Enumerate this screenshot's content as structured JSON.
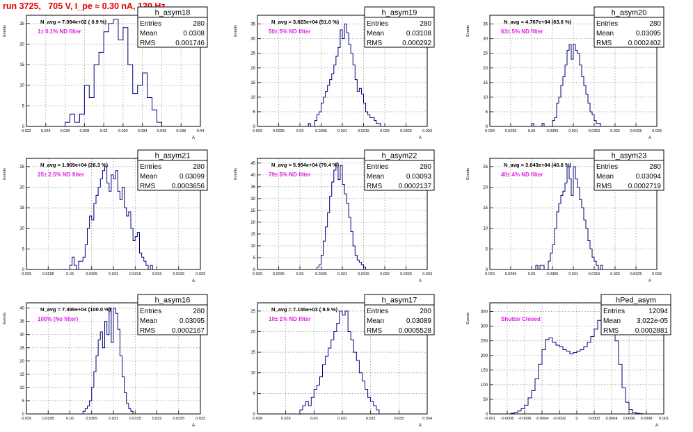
{
  "page_title": "run 3725,   705 V, I_pe ≈ 0.30 nA, 120 Hz",
  "chart_data": [
    {
      "type": "histogram",
      "name": "h_asym18",
      "xlim": [
        0.022,
        0.04
      ],
      "ylim": [
        0,
        27
      ],
      "yticks": [
        0,
        5,
        10,
        15,
        20,
        25
      ],
      "xticks": [
        "0.022",
        "0.024",
        "0.026",
        "0.028",
        "0.03",
        "0.032",
        "0.034",
        "0.036",
        "0.038",
        "0.04"
      ],
      "ylabel": "Events",
      "xlabel": "A",
      "nav": "N_avg = 7.094e+02 ( 0.9 %)",
      "filter": "1± 0.1% ND filter",
      "stats": {
        "Entries": "280",
        "Mean": "0.0308",
        "RMS": "0.001746"
      },
      "bins_x": [
        0.026,
        0.0265,
        0.027,
        0.0275,
        0.028,
        0.0285,
        0.029,
        0.0295,
        0.03,
        0.0305,
        0.031,
        0.0315,
        0.032,
        0.0325,
        0.033,
        0.0335,
        0.034,
        0.0345,
        0.035,
        0.0355
      ],
      "bins_y": [
        1,
        3,
        1,
        3,
        10,
        7,
        15,
        18,
        23,
        25,
        26,
        21,
        24,
        15,
        8,
        10,
        13,
        7,
        4,
        1
      ]
    },
    {
      "type": "histogram",
      "name": "h_asym19",
      "xlim": [
        0.029,
        0.033
      ],
      "ylim": [
        0,
        38
      ],
      "yticks": [
        0,
        5,
        10,
        15,
        20,
        25,
        30,
        35
      ],
      "xticks": [
        "0.029",
        "0.0295",
        "0.03",
        "0.0305",
        "0.031",
        "0.0315",
        "0.032",
        "0.0325",
        "0.033"
      ],
      "ylabel": "Events",
      "xlabel": "A",
      "nav": "N_avg = 3.823e+04 (51.0 %)",
      "filter": "50± 5% ND filter",
      "stats": {
        "Entries": "280",
        "Mean": "0.03108",
        "RMS": "0.000292"
      },
      "bins_x": [
        0.0302,
        0.03025,
        0.0303,
        0.03035,
        0.0304,
        0.03045,
        0.0305,
        0.03055,
        0.0306,
        0.03065,
        0.0307,
        0.03075,
        0.0308,
        0.03085,
        0.0309,
        0.03095,
        0.031,
        0.03105,
        0.0311,
        0.03115,
        0.0312,
        0.03125,
        0.0313,
        0.03135,
        0.0314,
        0.03145,
        0.0315,
        0.03155,
        0.0316,
        0.03165,
        0.0317,
        0.03175,
        0.0318,
        0.03185
      ],
      "bins_y": [
        1,
        0,
        0,
        2,
        4,
        5,
        8,
        10,
        12,
        14,
        16,
        18,
        21,
        24,
        27,
        33,
        30,
        35,
        32,
        28,
        25,
        21,
        16,
        12,
        13,
        11,
        8,
        5,
        4,
        3,
        3,
        2,
        1,
        1
      ]
    },
    {
      "type": "histogram",
      "name": "h_asym20",
      "xlim": [
        0.029,
        0.033
      ],
      "ylim": [
        0,
        38
      ],
      "yticks": [
        0,
        5,
        10,
        15,
        20,
        25,
        30,
        35
      ],
      "xticks": [
        "0.029",
        "0.0295",
        "0.03",
        "0.0305",
        "0.031",
        "0.0315",
        "0.032",
        "0.0325",
        "0.033"
      ],
      "ylabel": "Events",
      "xlabel": "A",
      "nav": "N_avg = 4.767e+04 (63.6 %)",
      "filter": "63± 5% ND filter",
      "stats": {
        "Entries": "280",
        "Mean": "0.03095",
        "RMS": "0.0002402"
      },
      "bins_x": [
        0.03,
        0.03005,
        0.0301,
        0.03015,
        0.0302,
        0.03025,
        0.0303,
        0.03035,
        0.0304,
        0.03045,
        0.0305,
        0.03055,
        0.0306,
        0.03065,
        0.0307,
        0.03075,
        0.0308,
        0.03085,
        0.0309,
        0.03095,
        0.031,
        0.03105,
        0.0311,
        0.03115,
        0.0312,
        0.03125,
        0.0313,
        0.03135,
        0.0314,
        0.03145,
        0.0315,
        0.03155,
        0.0316
      ],
      "bins_y": [
        1,
        0,
        0,
        0,
        0,
        1,
        0,
        0,
        0,
        0,
        2,
        3,
        8,
        10,
        14,
        17,
        21,
        26,
        28,
        23,
        28,
        26,
        25,
        21,
        17,
        14,
        11,
        8,
        5,
        4,
        2,
        1,
        1
      ]
    },
    {
      "type": "histogram",
      "name": "h_asym21",
      "xlim": [
        0.029,
        0.033
      ],
      "ylim": [
        0,
        27
      ],
      "yticks": [
        0,
        5,
        10,
        15,
        20,
        25
      ],
      "xticks": [
        "0.029",
        "0.0295",
        "0.03",
        "0.0305",
        "0.031",
        "0.0315",
        "0.032",
        "0.0325",
        "0.033"
      ],
      "ylabel": "Events",
      "xlabel": "A",
      "nav": "N_avg = 1.969e+04 (26.3 %)",
      "filter": "25± 2.5% ND filter",
      "stats": {
        "Entries": "280",
        "Mean": "0.03099",
        "RMS": "0.0003656"
      },
      "bins_x": [
        0.03,
        0.03005,
        0.0301,
        0.03015,
        0.0302,
        0.03025,
        0.0303,
        0.03035,
        0.0304,
        0.03045,
        0.0305,
        0.03055,
        0.0306,
        0.03065,
        0.0307,
        0.03075,
        0.0308,
        0.03085,
        0.0309,
        0.03095,
        0.031,
        0.03105,
        0.0311,
        0.03115,
        0.0312,
        0.03125,
        0.0313,
        0.03135,
        0.0314,
        0.03145,
        0.0315,
        0.03155,
        0.0316,
        0.03165,
        0.0317,
        0.03175,
        0.0318,
        0.03185,
        0.0319
      ],
      "bins_y": [
        1,
        3,
        1,
        0,
        2,
        2,
        3,
        6,
        10,
        13,
        12,
        16,
        18,
        20,
        22,
        24,
        25,
        21,
        19,
        23,
        22,
        24,
        19,
        17,
        20,
        15,
        13,
        14,
        10,
        7,
        8,
        9,
        4,
        3,
        2,
        1,
        0,
        1,
        0
      ]
    },
    {
      "type": "histogram",
      "name": "h_asym22",
      "xlim": [
        0.029,
        0.033
      ],
      "ylim": [
        0,
        47
      ],
      "yticks": [
        0,
        5,
        10,
        15,
        20,
        25,
        30,
        35,
        40,
        45
      ],
      "xticks": [
        "0.029",
        "0.0295",
        "0.03",
        "0.0305",
        "0.031",
        "0.0315",
        "0.032",
        "0.0325",
        "0.033"
      ],
      "ylabel": "Events",
      "xlabel": "A",
      "nav": "N_avg = 5.954e+04 (79.4 %)",
      "filter": "79± 5% ND filter",
      "stats": {
        "Entries": "280",
        "Mean": "0.03093",
        "RMS": "0.0002137"
      },
      "bins_x": [
        0.0304,
        0.03045,
        0.0305,
        0.03055,
        0.0306,
        0.03065,
        0.0307,
        0.03075,
        0.0308,
        0.03085,
        0.0309,
        0.03095,
        0.031,
        0.03105,
        0.0311,
        0.03115,
        0.0312,
        0.03125,
        0.0313,
        0.03135,
        0.0314,
        0.03145,
        0.0315,
        0.03155
      ],
      "bins_y": [
        1,
        2,
        6,
        12,
        18,
        24,
        31,
        37,
        42,
        45,
        38,
        44,
        36,
        32,
        28,
        22,
        16,
        10,
        6,
        4,
        3,
        2,
        1,
        0
      ]
    },
    {
      "type": "histogram",
      "name": "h_asym23",
      "xlim": [
        0.029,
        0.033
      ],
      "ylim": [
        0,
        27
      ],
      "yticks": [
        0,
        5,
        10,
        15,
        20,
        25
      ],
      "xticks": [
        "0.029",
        "0.0295",
        "0.03",
        "0.0305",
        "0.031",
        "0.0315",
        "0.032",
        "0.0325",
        "0.033"
      ],
      "ylabel": "Events",
      "xlabel": "A",
      "nav": "N_avg = 3.043e+04 (40.6 %)",
      "filter": "40± 4% ND filter",
      "stats": {
        "Entries": "280",
        "Mean": "0.03094",
        "RMS": "0.0002719"
      },
      "bins_x": [
        0.0301,
        0.03015,
        0.0302,
        0.03025,
        0.0303,
        0.03035,
        0.0304,
        0.03045,
        0.0305,
        0.03055,
        0.0306,
        0.03065,
        0.0307,
        0.03075,
        0.0308,
        0.03085,
        0.0309,
        0.03095,
        0.031,
        0.03105,
        0.0311,
        0.03115,
        0.0312,
        0.03125,
        0.0313,
        0.03135,
        0.0314,
        0.03145,
        0.0315,
        0.03155,
        0.0316,
        0.03165,
        0.0317
      ],
      "bins_y": [
        1,
        0,
        1,
        1,
        0,
        0,
        2,
        4,
        6,
        10,
        14,
        16,
        18,
        19,
        21,
        25,
        22,
        18,
        25,
        22,
        20,
        17,
        15,
        12,
        10,
        7,
        5,
        3,
        2,
        1,
        0,
        1,
        0
      ]
    },
    {
      "type": "histogram",
      "name": "h_asym16",
      "xlim": [
        0.029,
        0.033
      ],
      "ylim": [
        0,
        42
      ],
      "yticks": [
        0,
        5,
        10,
        15,
        20,
        25,
        30,
        35,
        40
      ],
      "xticks": [
        "0.029",
        "0.0295",
        "0.03",
        "0.0305",
        "0.031",
        "0.0315",
        "0.032",
        "0.0325",
        "0.033"
      ],
      "ylabel": "Events",
      "xlabel": "A",
      "nav": "N_avg = 7.499e+04 (100.0 %)",
      "filter": "100% (No filter)",
      "stats": {
        "Entries": "280",
        "Mean": "0.03095",
        "RMS": "0.0002167"
      },
      "bins_x": [
        0.0303,
        0.03035,
        0.0304,
        0.03045,
        0.0305,
        0.03055,
        0.0306,
        0.03065,
        0.0307,
        0.03075,
        0.0308,
        0.03085,
        0.0309,
        0.03095,
        0.031,
        0.03105,
        0.0311,
        0.03115,
        0.0312,
        0.03125,
        0.0313,
        0.03135,
        0.0314
      ],
      "bins_y": [
        1,
        2,
        3,
        5,
        10,
        16,
        22,
        28,
        31,
        25,
        35,
        30,
        40,
        27,
        40,
        38,
        32,
        22,
        14,
        8,
        4,
        2,
        1
      ]
    },
    {
      "type": "histogram",
      "name": "h_asym17",
      "xlim": [
        0.028,
        0.034
      ],
      "ylim": [
        0,
        27
      ],
      "yticks": [
        0,
        5,
        10,
        15,
        20,
        25
      ],
      "xticks": [
        "0.028",
        "0.029",
        "0.03",
        "0.031",
        "0.032",
        "0.033",
        "0.034"
      ],
      "ylabel": "",
      "xlabel": "A",
      "nav": "N_avg = 7.155e+03 ( 9.5 %)",
      "filter": "10± 1% ND filter",
      "stats": {
        "Entries": "280",
        "Mean": "0.03089",
        "RMS": "0.0005528"
      },
      "bins_x": [
        0.0295,
        0.0296,
        0.0297,
        0.0298,
        0.0299,
        0.03,
        0.0301,
        0.0302,
        0.0303,
        0.0304,
        0.0305,
        0.0306,
        0.0307,
        0.0308,
        0.0309,
        0.031,
        0.0311,
        0.0312,
        0.0313,
        0.0314,
        0.0315,
        0.0316,
        0.0317,
        0.0318,
        0.0319,
        0.032,
        0.0321,
        0.0322
      ],
      "bins_y": [
        1,
        2,
        3,
        2,
        4,
        6,
        7,
        9,
        12,
        14,
        16,
        18,
        20,
        22,
        25,
        24,
        25,
        20,
        18,
        15,
        13,
        10,
        8,
        6,
        4,
        3,
        2,
        1
      ]
    },
    {
      "type": "histogram",
      "name": "hPed_asym",
      "xlim": [
        -0.001,
        0.001
      ],
      "ylim": [
        0,
        380
      ],
      "yticks": [
        0,
        50,
        100,
        150,
        200,
        250,
        300,
        350
      ],
      "xticks": [
        "-0.001",
        "-0.0008",
        "-0.0006",
        "-0.0004",
        "-0.0002",
        "0",
        "0.0002",
        "0.0004",
        "0.0006",
        "0.0008",
        "0.001"
      ],
      "ylabel": "Events",
      "xlabel": "A",
      "nav": "",
      "filter": "Shutter Closed",
      "stats": {
        "Entries": "12094",
        "Mean": "3.022e-05",
        "RMS": "0.0002881"
      },
      "bins_x": [
        -0.00076,
        -0.00072,
        -0.00068,
        -0.00064,
        -0.0006,
        -0.00056,
        -0.00052,
        -0.00048,
        -0.00044,
        -0.0004,
        -0.00036,
        -0.00032,
        -0.00028,
        -0.00024,
        -0.0002,
        -0.00016,
        -0.00012,
        -8e-05,
        -4e-05,
        0,
        4e-05,
        8e-05,
        0.00012,
        0.00016,
        0.0002,
        0.00024,
        0.00028,
        0.00032,
        0.00036,
        0.0004,
        0.00044,
        0.00048,
        0.00052,
        0.00056,
        0.0006,
        0.00064,
        0.00068,
        0.00072
      ],
      "bins_y": [
        2,
        5,
        10,
        18,
        30,
        55,
        80,
        120,
        170,
        220,
        255,
        260,
        245,
        235,
        230,
        220,
        215,
        205,
        210,
        215,
        220,
        230,
        245,
        265,
        290,
        320,
        345,
        360,
        340,
        310,
        250,
        170,
        90,
        40,
        15,
        5,
        2,
        1
      ]
    }
  ]
}
